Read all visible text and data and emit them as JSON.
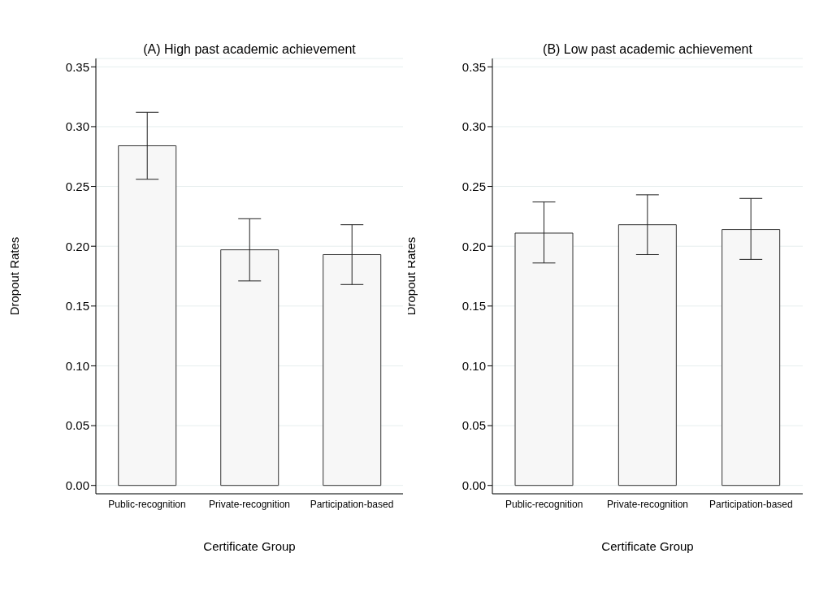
{
  "chart_data": [
    {
      "type": "bar",
      "title": "(A) High past academic achievement",
      "xlabel": "Certificate Group",
      "ylabel": "Dropout Rates",
      "categories": [
        "Public-recognition",
        "Private-recognition",
        "Participation-based"
      ],
      "series": [
        {
          "color": "#f7f7f7",
          "values": [
            0.284,
            0.197,
            0.193
          ],
          "errors": [
            [
              0.256,
              0.312
            ],
            [
              0.171,
              0.223
            ],
            [
              0.168,
              0.218
            ]
          ]
        }
      ],
      "ylim": [
        -0.007,
        0.357
      ],
      "yticks": [
        {
          "value": 0,
          "label": "0.00"
        },
        {
          "value": 0.05,
          "label": "0.05"
        },
        {
          "value": 0.1,
          "label": "0.10"
        },
        {
          "value": 0.15,
          "label": "0.15"
        },
        {
          "value": 0.2,
          "label": "0.20"
        },
        {
          "value": 0.25,
          "label": "0.25"
        },
        {
          "value": 0.3,
          "label": "0.30"
        },
        {
          "value": 0.35,
          "label": "0.35"
        }
      ],
      "grid": "y"
    },
    {
      "type": "bar",
      "title": "(B) Low past academic achievement",
      "xlabel": "Certificate Group",
      "ylabel": "Dropout Rates",
      "categories": [
        "Public-recognition",
        "Private-recognition",
        "Participation-based"
      ],
      "series": [
        {
          "color": "#f7f7f7",
          "values": [
            0.211,
            0.218,
            0.214
          ],
          "errors": [
            [
              0.186,
              0.237
            ],
            [
              0.193,
              0.243
            ],
            [
              0.189,
              0.24
            ]
          ]
        }
      ],
      "ylim": [
        -0.007,
        0.357
      ],
      "yticks": [
        {
          "value": 0,
          "label": "0.00"
        },
        {
          "value": 0.05,
          "label": "0.05"
        },
        {
          "value": 0.1,
          "label": "0.10"
        },
        {
          "value": 0.15,
          "label": "0.15"
        },
        {
          "value": 0.2,
          "label": "0.20"
        },
        {
          "value": 0.25,
          "label": "0.25"
        },
        {
          "value": 0.3,
          "label": "0.30"
        },
        {
          "value": 0.35,
          "label": "0.35"
        }
      ],
      "grid": "y"
    }
  ]
}
